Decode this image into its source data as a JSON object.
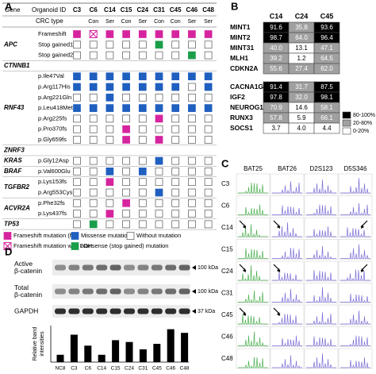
{
  "panel_a": {
    "letter": "A",
    "header": {
      "gene": "Gene",
      "organoid_id": "Organoid ID",
      "crc_type": "CRC type"
    },
    "organoids": [
      "C3",
      "C6",
      "C14",
      "C15",
      "C24",
      "C31",
      "C45",
      "C46",
      "C48"
    ],
    "crc_types": [
      null,
      "Con",
      "Ser",
      "Con",
      "Ser",
      "Con",
      "Con",
      "Ser",
      "Ser"
    ],
    "genes": [
      {
        "gene": "APC",
        "variants": [
          {
            "name": "Frameshift",
            "cells": [
              "fs",
              "loh",
              "fs",
              "fs",
              "fs",
              "fs",
              "fs",
              "fs",
              "fs"
            ]
          },
          {
            "name": "Stop gained1",
            "cells": [
              "none",
              "none",
              "none",
              "none",
              "none",
              "nonsense",
              "none",
              "none",
              "none"
            ]
          },
          {
            "name": "Stop gained2",
            "cells": [
              "none",
              "none",
              "none",
              "none",
              "none",
              "none",
              "none",
              "nonsense",
              "none"
            ]
          }
        ]
      },
      {
        "gene": "CTNNB1",
        "variants": []
      },
      {
        "gene": "RNF43",
        "variants": [
          {
            "name": "p.Ile47Val",
            "cells": [
              "missense",
              "missense",
              "missense",
              "missense",
              "missense",
              "missense",
              "missense",
              "missense",
              "missense"
            ]
          },
          {
            "name": "p.Arg117His",
            "cells": [
              "missense",
              "missense",
              "missense",
              "missense",
              "missense",
              "missense",
              "missense",
              "none",
              "missense"
            ]
          },
          {
            "name": "p.Arg221Gln",
            "cells": [
              "none",
              "none",
              "missense",
              "none",
              "none",
              "none",
              "none",
              "none",
              "none"
            ]
          },
          {
            "name": "p.Leu418Met",
            "cells": [
              "missense",
              "missense",
              "missense",
              "missense",
              "missense",
              "missense",
              "missense",
              "missense",
              "missense"
            ]
          },
          {
            "name": "p.Arg225fs",
            "cells": [
              "none",
              "none",
              "none",
              "none",
              "none",
              "fs",
              "none",
              "none",
              "none"
            ]
          },
          {
            "name": "p.Pro370fs",
            "cells": [
              "none",
              "none",
              "none",
              "fs",
              "none",
              "none",
              "none",
              "none",
              "none"
            ]
          },
          {
            "name": "p.Gly659fs",
            "cells": [
              "none",
              "none",
              "none",
              "fs",
              "none",
              "fs",
              "none",
              "none",
              "none"
            ]
          }
        ]
      },
      {
        "gene": "ZNRF3",
        "variants": []
      },
      {
        "gene": "KRAS",
        "variants": [
          {
            "name": "p.Gly12Asp",
            "cells": [
              "none",
              "none",
              "none",
              "none",
              "none",
              "missense",
              "none",
              "none",
              "none"
            ]
          }
        ]
      },
      {
        "gene": "BRAF",
        "variants": [
          {
            "name": "p.Val600Glu",
            "cells": [
              "none",
              "none",
              "missense",
              "none",
              "missense",
              "none",
              "none",
              "none",
              "none"
            ]
          }
        ]
      },
      {
        "gene": "TGFBR2",
        "variants": [
          {
            "name": "p.Lys153fs",
            "cells": [
              "none",
              "none",
              "fs",
              "none",
              "none",
              "none",
              "none",
              "none",
              "none"
            ]
          },
          {
            "name": "p.Arg553Cys",
            "cells": [
              "none",
              "none",
              "none",
              "none",
              "none",
              "missense",
              "none",
              "none",
              "none"
            ]
          }
        ]
      },
      {
        "gene": "ACVR2A",
        "variants": [
          {
            "name": "p.Phe32fs",
            "cells": [
              "none",
              "none",
              "none",
              "fs",
              "none",
              "none",
              "none",
              "none",
              "none"
            ]
          },
          {
            "name": "p.Lys437fs",
            "cells": [
              "none",
              "none",
              "fs",
              "none",
              "none",
              "none",
              "none",
              "none",
              "none"
            ]
          }
        ]
      },
      {
        "gene": "TP53",
        "variants": [
          {
            "name": null,
            "cells": [
              "none",
              "nonsense",
              "none",
              "none",
              "none",
              "none",
              "none",
              "none",
              "none"
            ]
          }
        ]
      }
    ],
    "legend": [
      {
        "status": "fs",
        "label": "Frameshift mutation (fs)",
        "color": "#d6249f"
      },
      {
        "status": "missense",
        "label": "Missense mutation",
        "color": "#1f5fbf"
      },
      {
        "status": "none",
        "label": "Without mutation",
        "color": "#ffffff"
      },
      {
        "status": "loh",
        "label": "Frameshift mutation with LOH",
        "color": "#d6249f"
      },
      {
        "status": "nonsense",
        "label": "Nonsense (stop gained) mutation",
        "color": "#1a9e4a"
      }
    ]
  },
  "panel_b": {
    "letter": "B",
    "columns": [
      "C14",
      "C24",
      "C45"
    ],
    "groups": [
      [
        {
          "gene": "MINT1",
          "values": [
            91.6,
            35.8,
            93.6
          ],
          "value_labels": [
            "91.6",
            "35.8",
            "93.6"
          ]
        },
        {
          "gene": "MINT2",
          "values": [
            98.7,
            64,
            96.4
          ],
          "value_labels": [
            "98.7",
            "64.0",
            "96.4"
          ]
        },
        {
          "gene": "MINT31",
          "values": [
            40,
            13.1,
            47.1
          ],
          "value_labels": [
            "40.0",
            "13.1",
            "47.1"
          ]
        },
        {
          "gene": "MLH1",
          "values": [
            39.2,
            1.2,
            64.5
          ],
          "value_labels": [
            "39.2",
            "1.2",
            "64.5"
          ]
        },
        {
          "gene": "CDKN2A",
          "values": [
            55.6,
            27.4,
            62
          ],
          "value_labels": [
            "55.6",
            "27.4",
            "62.0"
          ]
        }
      ],
      [
        {
          "gene": "CACNA1G",
          "values": [
            91.4,
            31.7,
            87.5
          ],
          "value_labels": [
            "91.4",
            "31.7",
            "87.5"
          ]
        },
        {
          "gene": "IGF2",
          "values": [
            97.8,
            32,
            98.1
          ],
          "value_labels": [
            "97.8",
            "32.0",
            "98.1"
          ]
        },
        {
          "gene": "NEUROG1",
          "values": [
            70.9,
            14.6,
            58.1
          ],
          "value_labels": [
            "70.9",
            "14.6",
            "58.1"
          ]
        },
        {
          "gene": "RUNX3",
          "values": [
            57.8,
            5.9,
            66.1
          ],
          "value_labels": [
            "57.8",
            "5.9",
            "66.1"
          ]
        },
        {
          "gene": "SOCS1",
          "values": [
            3.7,
            4,
            4.4
          ],
          "value_labels": [
            "3.7",
            "4.0",
            "4.4"
          ]
        }
      ]
    ],
    "legend": [
      {
        "label": "80-100%",
        "min": 80,
        "max": 100,
        "fill": "#000000",
        "text_color": "#ffffff"
      },
      {
        "label": "20-80%",
        "min": 20,
        "max": 80,
        "fill": "#a0a0a0",
        "text_color": "#ffffff"
      },
      {
        "label": "0-20%",
        "min": 0,
        "max": 20,
        "fill": "#ffffff",
        "text_color": "#000000"
      }
    ]
  },
  "panel_c": {
    "letter": "C",
    "markers": [
      "BAT25",
      "BAT26",
      "D2S123",
      "D5S346"
    ],
    "trace_colors": [
      "#4caf50",
      "#7a6fd6",
      "#7a6fd6",
      "#7a6fd6"
    ],
    "samples": [
      {
        "id": "C3",
        "arrows": [
          false,
          false,
          false,
          false
        ]
      },
      {
        "id": "C6",
        "arrows": [
          false,
          false,
          false,
          false
        ]
      },
      {
        "id": "C14",
        "arrows": [
          true,
          true,
          false,
          true
        ]
      },
      {
        "id": "C15",
        "arrows": [
          false,
          false,
          false,
          false
        ]
      },
      {
        "id": "C24",
        "arrows": [
          true,
          true,
          false,
          true
        ]
      },
      {
        "id": "C31",
        "arrows": [
          false,
          false,
          false,
          false
        ]
      },
      {
        "id": "C45",
        "arrows": [
          true,
          true,
          false,
          false
        ]
      },
      {
        "id": "C46",
        "arrows": [
          false,
          false,
          false,
          false
        ]
      },
      {
        "id": "C48",
        "arrows": [
          false,
          false,
          false,
          false
        ]
      }
    ]
  },
  "panel_d": {
    "letter": "D",
    "blots": [
      {
        "label_lines": [
          "Active",
          "β-catenin"
        ],
        "size": "100 kDa"
      },
      {
        "label_lines": [
          "Total",
          "β-catenin"
        ],
        "size": "100 kDa"
      },
      {
        "label_lines": [
          "GAPDH"
        ],
        "size": "37 kDa"
      }
    ]
  },
  "chart_data": {
    "type": "bar",
    "y_label_lines": [
      "Relative band",
      "intensities"
    ],
    "categories": [
      "NC8",
      "C3",
      "C6",
      "C14",
      "C15",
      "C24",
      "C31",
      "C45",
      "C46",
      "C48"
    ],
    "values": [
      0.2,
      0.75,
      0.45,
      0.2,
      0.6,
      0.55,
      0.35,
      0.5,
      0.9,
      0.8
    ],
    "color": "#000000",
    "ylim": [
      0,
      1
    ]
  }
}
